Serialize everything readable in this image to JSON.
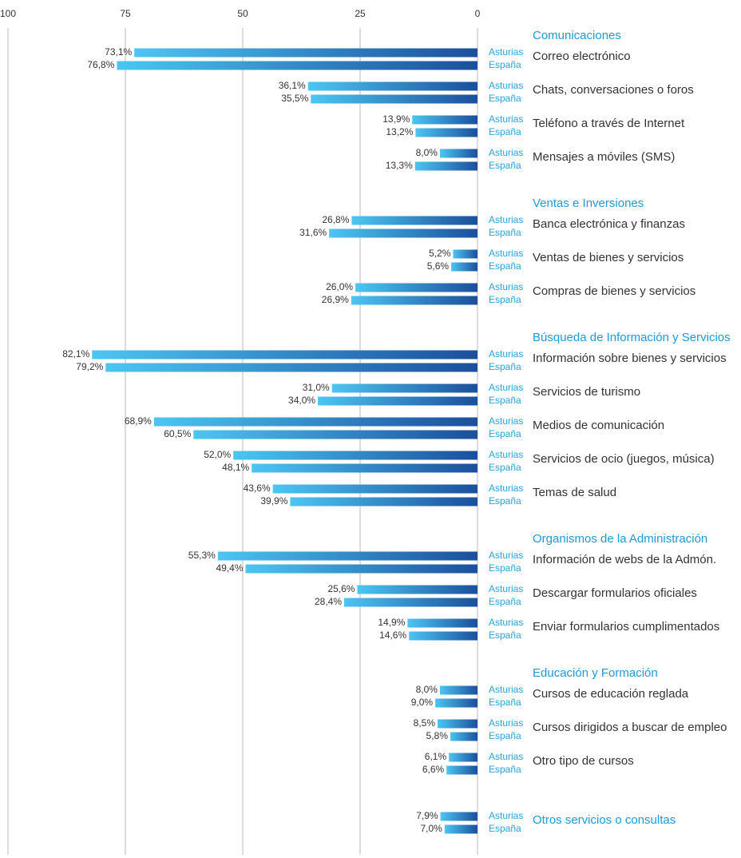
{
  "chart_data": {
    "type": "bar",
    "orientation": "horizontal",
    "reversed_x": true,
    "xlim": [
      0,
      100
    ],
    "xticks": [
      100,
      75,
      50,
      25,
      0
    ],
    "grid": true,
    "groups": [
      {
        "name": "Comunicaciones",
        "categories": [
          "Correo electrónico",
          "Chats, conversaciones o foros",
          "Teléfono a través de Internet",
          "Mensajes a móviles (SMS)"
        ]
      },
      {
        "name": "Ventas e Inversiones",
        "categories": [
          "Banca electrónica y finanzas",
          "Ventas de bienes y servicios",
          "Compras de bienes y servicios"
        ]
      },
      {
        "name": "Búsqueda de Información y Servicios",
        "categories": [
          "Información sobre bienes y servicios",
          "Servicios de turismo",
          "Medios de comunicación",
          "Servicios de ocio (juegos, música)",
          "Temas de salud"
        ]
      },
      {
        "name": "Organismos de la Administración",
        "categories": [
          "Información de webs de la Admón.",
          "Descargar formularios oficiales",
          "Enviar formularios cumplimentados"
        ]
      },
      {
        "name": "Educación y Formación",
        "categories": [
          "Cursos de educación reglada",
          "Cursos dirigidos a buscar de empleo",
          "Otro tipo de cursos"
        ]
      },
      {
        "categories": [
          "Otros servicios o consultas"
        ]
      }
    ],
    "series": [
      {
        "name": "Asturias",
        "color": "#1b4f9c",
        "values": [
          73.1,
          36.1,
          13.9,
          8.0,
          26.8,
          5.2,
          26.0,
          82.1,
          31.0,
          68.9,
          52.0,
          43.6,
          55.3,
          25.6,
          14.9,
          8.0,
          8.5,
          6.1,
          7.9
        ],
        "value_labels": [
          "73,1%",
          "36,1%",
          "13,9%",
          "8,0%",
          "26,8%",
          "5,2%",
          "26,0%",
          "82,1%",
          "31,0%",
          "68,9%",
          "52,0%",
          "43,6%",
          "55,3%",
          "25,6%",
          "14,9%",
          "8,0%",
          "8,5%",
          "6,1%",
          "7,9%"
        ]
      },
      {
        "name": "España",
        "color": "#1b4f9c",
        "values": [
          76.8,
          35.5,
          13.2,
          13.3,
          31.6,
          5.6,
          26.9,
          79.2,
          34.0,
          60.5,
          48.1,
          39.9,
          49.4,
          28.4,
          14.6,
          9.0,
          5.8,
          6.6,
          7.0
        ],
        "value_labels": [
          "76,8%",
          "35,5%",
          "13,2%",
          "13,3%",
          "31,6%",
          "5,6%",
          "26,9%",
          "79,2%",
          "34,0%",
          "60,5%",
          "48,1%",
          "39,9%",
          "49,4%",
          "28,4%",
          "14,6%",
          "9,0%",
          "5,8%",
          "6,6%",
          "7,0%"
        ]
      }
    ]
  }
}
